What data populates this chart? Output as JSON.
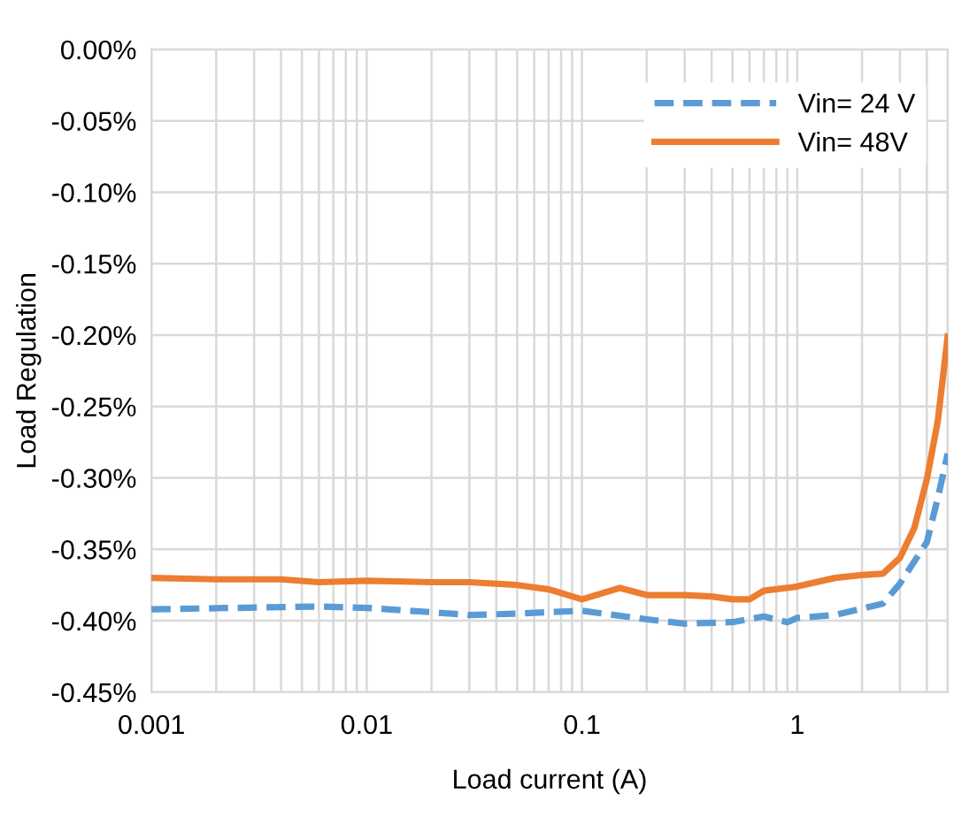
{
  "chart_data": {
    "type": "line",
    "xlabel": "Load current (A)",
    "ylabel": "Load Regulation",
    "log": "x",
    "xlim": [
      0.001,
      5
    ],
    "xticks": [
      0.001,
      0.01,
      0.1,
      1
    ],
    "ylim": [
      -0.45,
      0
    ],
    "yticks": [
      {
        "value": -0.45,
        "label": "-0.45%"
      },
      {
        "value": -0.4,
        "label": "-0.40%"
      },
      {
        "value": -0.35,
        "label": "-0.35%"
      },
      {
        "value": -0.3,
        "label": "-0.30%"
      },
      {
        "value": -0.25,
        "label": "-0.25%"
      },
      {
        "value": -0.2,
        "label": "-0.20%"
      },
      {
        "value": -0.15,
        "label": "-0.15%"
      },
      {
        "value": -0.1,
        "label": "-0.10%"
      },
      {
        "value": -0.05,
        "label": "-0.05%"
      },
      {
        "value": 0,
        "label": "0.00%"
      }
    ],
    "grid": true,
    "legend": "top right",
    "marker": "none",
    "series": [
      {
        "name": "Vin= 24 V",
        "color": "#5b9bd5",
        "line_style": "dashed",
        "x": [
          0.001,
          0.006,
          0.01,
          0.02,
          0.03,
          0.05,
          0.1,
          0.2,
          0.3,
          0.5,
          0.7,
          0.9,
          1.0,
          1.5,
          2.5,
          3,
          4,
          4.5,
          5
        ],
        "values": [
          -0.392,
          -0.39,
          -0.391,
          -0.394,
          -0.396,
          -0.395,
          -0.393,
          -0.399,
          -0.402,
          -0.401,
          -0.397,
          -0.401,
          -0.398,
          -0.396,
          -0.388,
          -0.374,
          -0.345,
          -0.314,
          -0.283
        ]
      },
      {
        "name": "Vin= 48V",
        "color": "#ed7d31",
        "line_style": "solid",
        "x": [
          0.001,
          0.002,
          0.004,
          0.006,
          0.01,
          0.02,
          0.03,
          0.05,
          0.07,
          0.1,
          0.15,
          0.2,
          0.3,
          0.4,
          0.5,
          0.6,
          0.7,
          0.9,
          1.0,
          1.5,
          2,
          2.5,
          3,
          3.5,
          4,
          4.5,
          5
        ],
        "values": [
          -0.37,
          -0.371,
          -0.371,
          -0.373,
          -0.372,
          -0.373,
          -0.373,
          -0.375,
          -0.378,
          -0.385,
          -0.377,
          -0.382,
          -0.382,
          -0.383,
          -0.385,
          -0.385,
          -0.379,
          -0.377,
          -0.376,
          -0.37,
          -0.368,
          -0.367,
          -0.356,
          -0.335,
          -0.301,
          -0.26,
          -0.201
        ]
      }
    ]
  }
}
